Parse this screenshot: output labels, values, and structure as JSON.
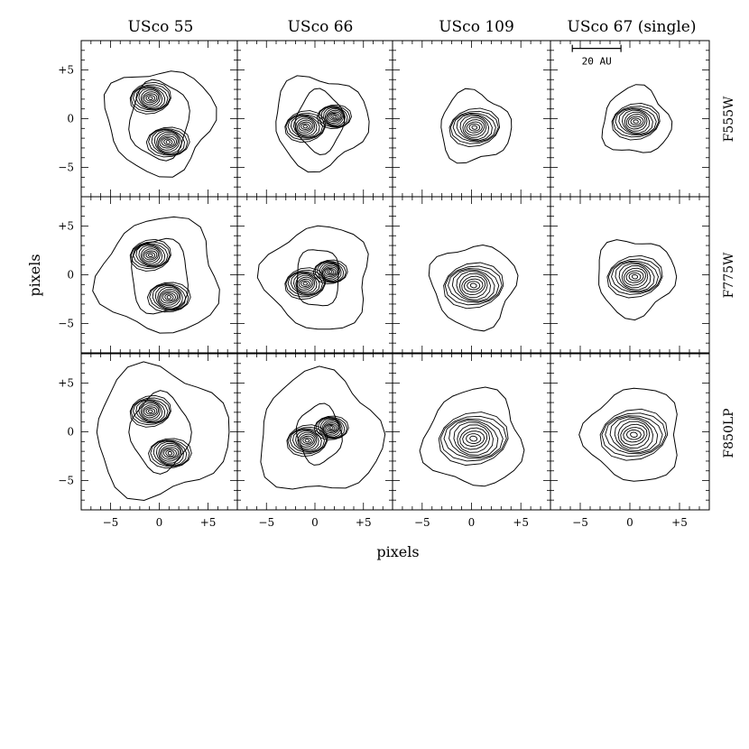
{
  "chart_data": {
    "type": "contour",
    "xlabel": "pixels",
    "ylabel": "pixels",
    "xlim": [
      -8,
      8
    ],
    "ylim": [
      -8,
      8
    ],
    "x_ticks": [
      -5,
      0,
      5
    ],
    "x_tick_labels": [
      "−5",
      "0",
      "+5"
    ],
    "y_ticks": [
      5,
      0,
      -5
    ],
    "y_tick_labels": [
      "+5",
      "0",
      "−5"
    ],
    "columns": [
      "USco 55",
      "USco 66",
      "USco 109",
      "USco 67 (single)"
    ],
    "rows": [
      "F555W",
      "F775W",
      "F850LP"
    ],
    "scale_bar": {
      "label": "20 AU",
      "x_start": -5.8,
      "x_end": -0.9,
      "y": 7.2
    },
    "panels": [
      {
        "target": "USco 55",
        "filter": "F555W",
        "sources": [
          {
            "x": -0.9,
            "y": 2.1,
            "flux": 1.0
          },
          {
            "x": 0.9,
            "y": -2.4,
            "flux": 1.0
          }
        ],
        "extent": 5.5
      },
      {
        "target": "USco 66",
        "filter": "F555W",
        "sources": [
          {
            "x": -1.0,
            "y": -0.8,
            "flux": 1.0
          },
          {
            "x": 2.0,
            "y": 0.2,
            "flux": 0.8
          }
        ],
        "extent": 5.0
      },
      {
        "target": "USco 109",
        "filter": "F555W",
        "sources": [
          {
            "x": 0.3,
            "y": -0.9,
            "flux": 1.0
          }
        ],
        "extent": 4.2
      },
      {
        "target": "USco 67 (single)",
        "filter": "F555W",
        "sources": [
          {
            "x": 0.6,
            "y": -0.3,
            "flux": 1.0
          }
        ],
        "extent": 4.0
      },
      {
        "target": "USco 55",
        "filter": "F775W",
        "sources": [
          {
            "x": -0.9,
            "y": 2.0,
            "flux": 1.0
          },
          {
            "x": 1.0,
            "y": -2.3,
            "flux": 1.0
          }
        ],
        "extent": 6.2
      },
      {
        "target": "USco 66",
        "filter": "F775W",
        "sources": [
          {
            "x": -1.0,
            "y": -0.9,
            "flux": 1.0
          },
          {
            "x": 1.6,
            "y": 0.3,
            "flux": 0.8
          }
        ],
        "extent": 5.8
      },
      {
        "target": "USco 109",
        "filter": "F775W",
        "sources": [
          {
            "x": 0.2,
            "y": -1.1,
            "flux": 1.0
          }
        ],
        "extent": 5.0
      },
      {
        "target": "USco 67 (single)",
        "filter": "F775W",
        "sources": [
          {
            "x": 0.5,
            "y": -0.2,
            "flux": 1.0
          }
        ],
        "extent": 4.6
      },
      {
        "target": "USco 55",
        "filter": "F850LP",
        "sources": [
          {
            "x": -0.9,
            "y": 2.1,
            "flux": 1.0
          },
          {
            "x": 1.1,
            "y": -2.2,
            "flux": 1.0
          }
        ],
        "extent": 7.0
      },
      {
        "target": "USco 66",
        "filter": "F850LP",
        "sources": [
          {
            "x": -0.8,
            "y": -0.9,
            "flux": 1.0
          },
          {
            "x": 1.7,
            "y": 0.4,
            "flux": 0.8
          }
        ],
        "extent": 6.8
      },
      {
        "target": "USco 109",
        "filter": "F850LP",
        "sources": [
          {
            "x": 0.2,
            "y": -0.7,
            "flux": 1.0
          }
        ],
        "extent": 5.8
      },
      {
        "target": "USco 67 (single)",
        "filter": "F850LP",
        "sources": [
          {
            "x": 0.4,
            "y": -0.3,
            "flux": 1.0
          }
        ],
        "extent": 5.6
      }
    ],
    "contour_levels": 10,
    "grid": false
  }
}
